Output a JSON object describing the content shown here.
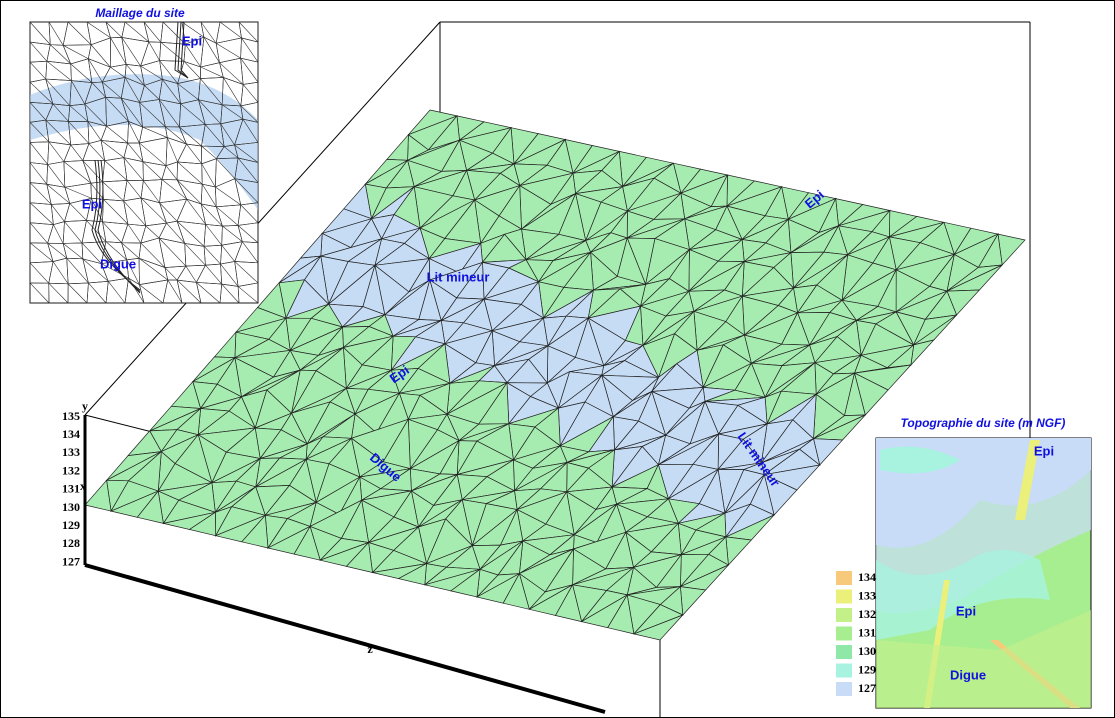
{
  "inset_mesh": {
    "title": "Maillage du site",
    "labels": [
      "Epi",
      "Epi",
      "Digue"
    ]
  },
  "surface": {
    "labels": [
      "Lit mineur",
      "Epi",
      "Epi",
      "Digue",
      "Lit mineur"
    ],
    "axis_ticks": [
      "135",
      "134",
      "133",
      "132",
      "131",
      "130",
      "129",
      "128",
      "127"
    ],
    "axis_names": [
      "y",
      "x",
      "z"
    ]
  },
  "inset_topo": {
    "title": "Topographie du site (m NGF)",
    "labels": [
      "Epi",
      "Epi",
      "Digue"
    ],
    "legend": [
      {
        "label": "134",
        "color": "#f7c97a"
      },
      {
        "label": "133",
        "color": "#eaf07a"
      },
      {
        "label": "132",
        "color": "#c4f08a"
      },
      {
        "label": "131",
        "color": "#a7ee90"
      },
      {
        "label": "130",
        "color": "#8fe8a8"
      },
      {
        "label": "129",
        "color": "#a8f3e0"
      },
      {
        "label": "127",
        "color": "#c8dcf8"
      }
    ]
  }
}
